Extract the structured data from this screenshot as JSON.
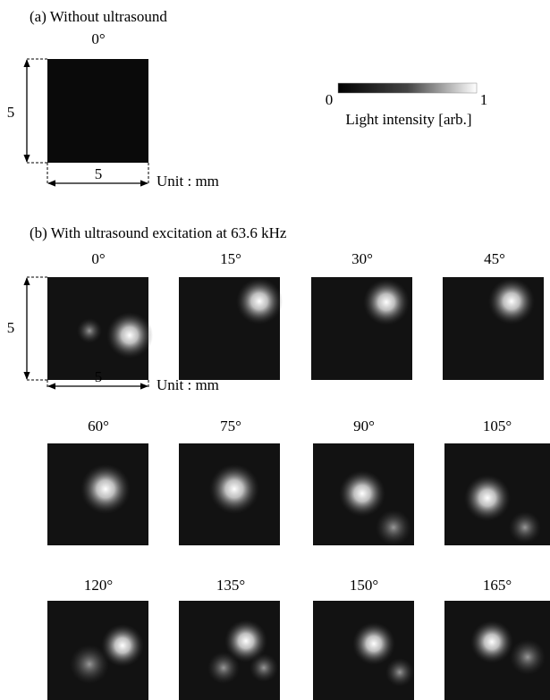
{
  "panel_a": {
    "label": "(a) Without ultrasound",
    "angle": "0°",
    "height_label": "5",
    "width_label": "5",
    "unit": "Unit : mm"
  },
  "colorbar": {
    "min": 0,
    "max": 1,
    "label": "Light intensity [arb.]"
  },
  "panel_b": {
    "label": "(b) With ultrasound excitation at 63.6 kHz",
    "height_label": "5",
    "width_label": "5",
    "unit": "Unit : mm",
    "angles": [
      "0°",
      "15°",
      "30°",
      "45°",
      "60°",
      "75°",
      "90°",
      "105°",
      "120°",
      "135°",
      "150°",
      "165°"
    ]
  }
}
